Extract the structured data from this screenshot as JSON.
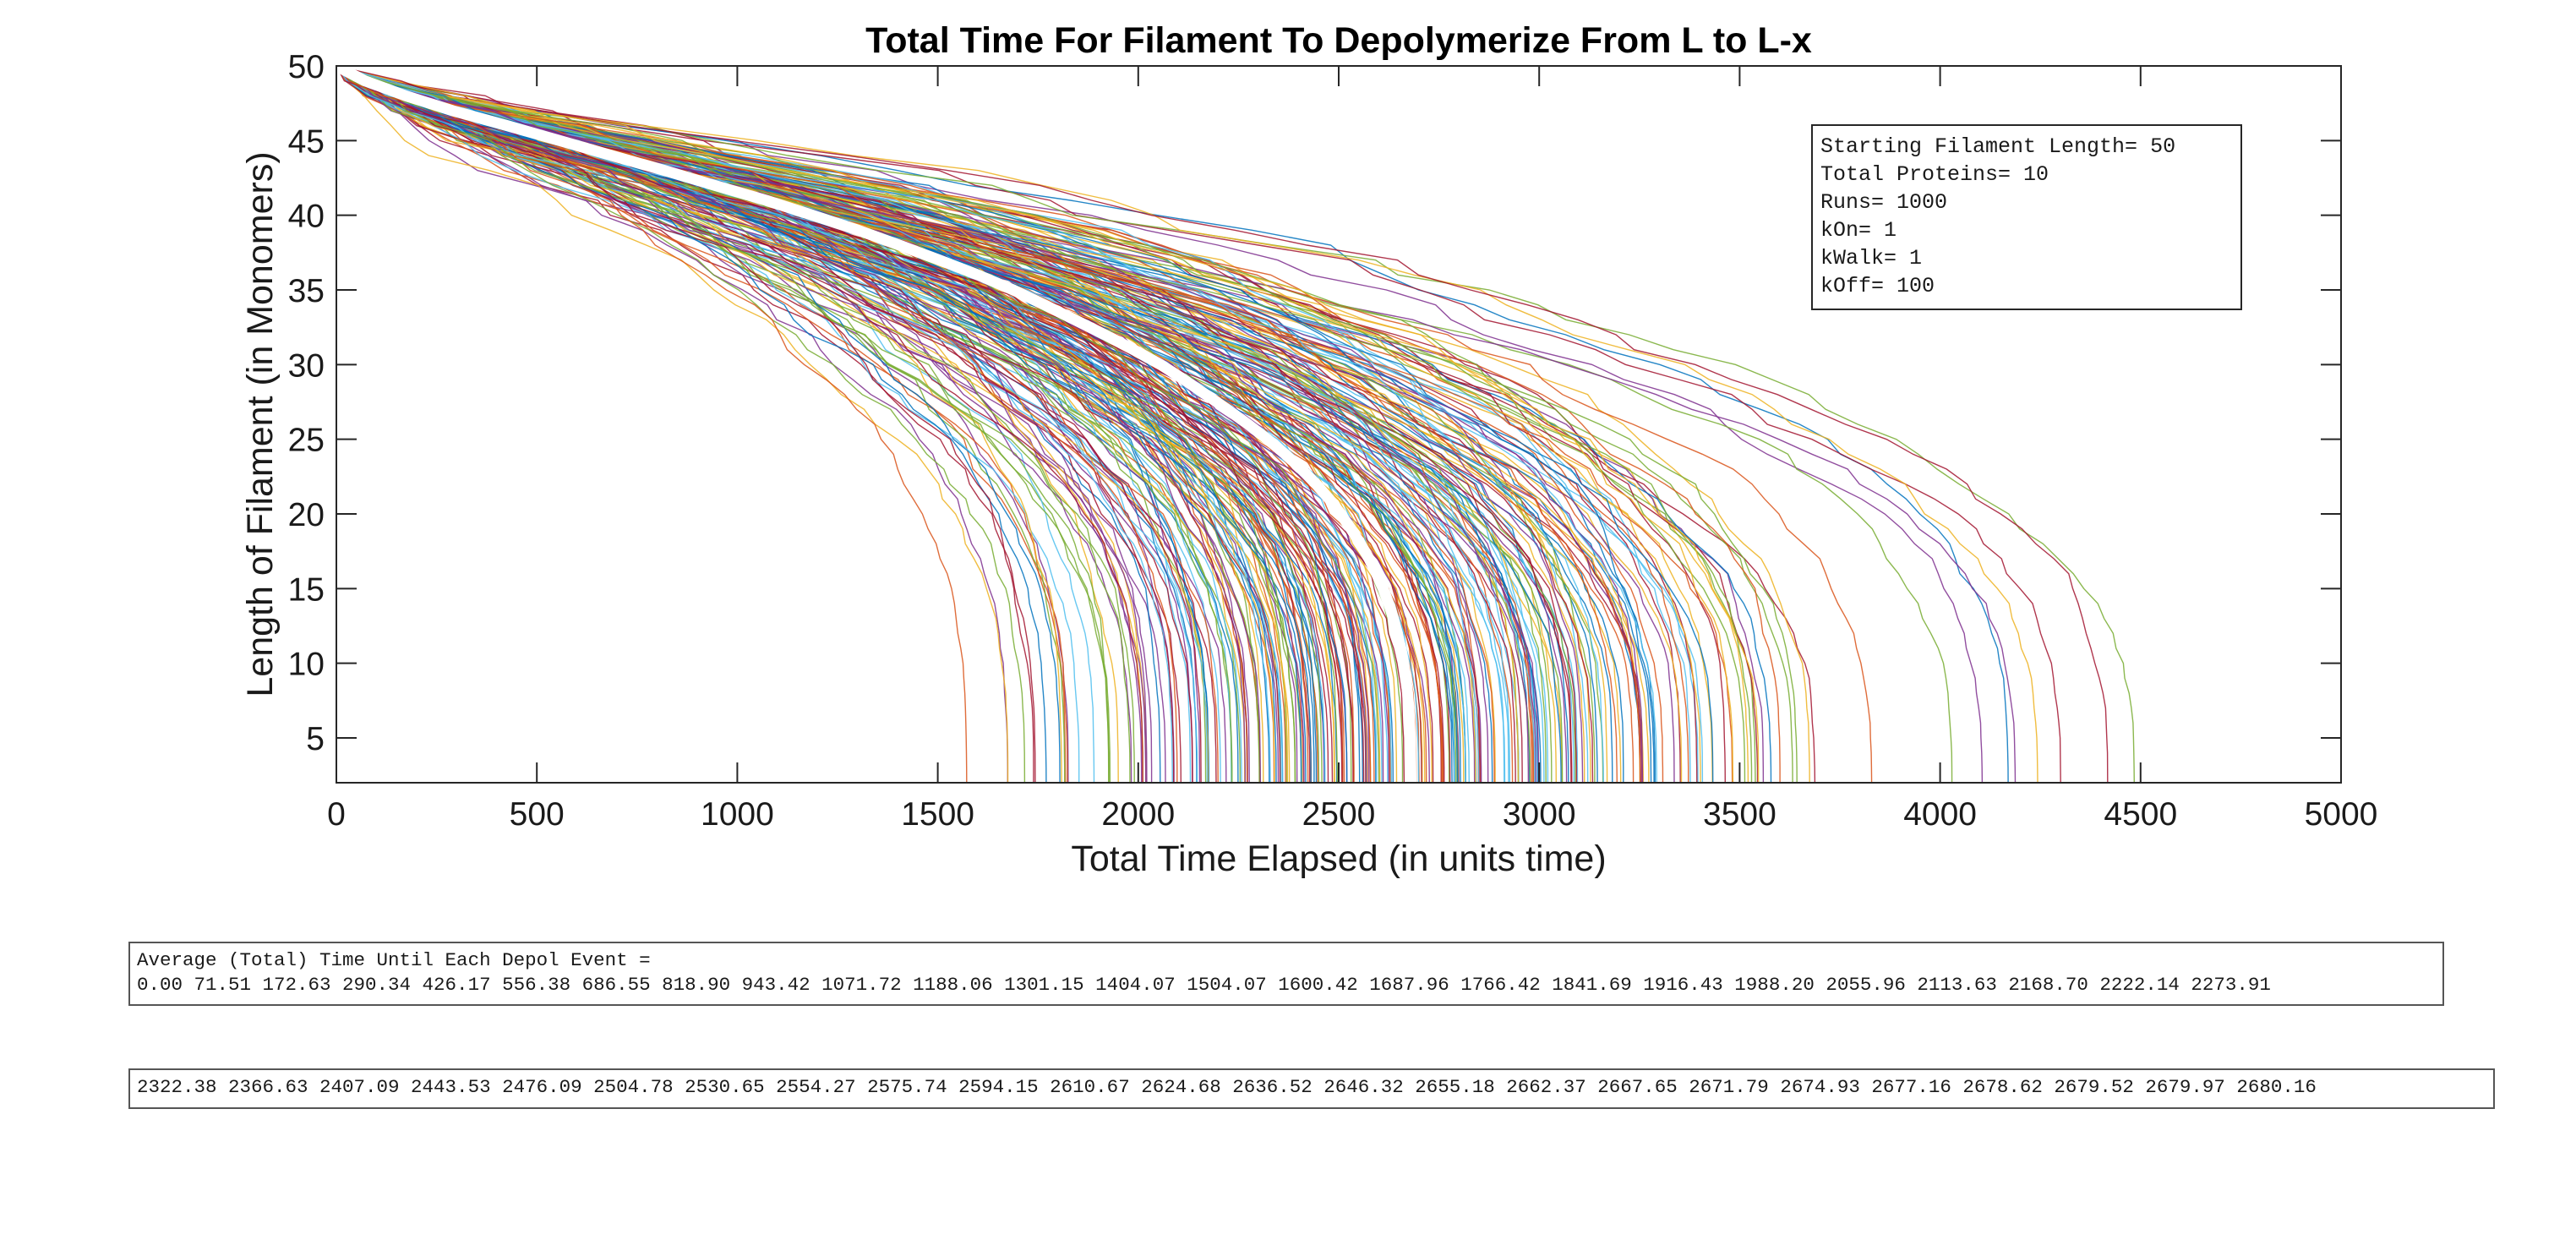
{
  "chart_data": {
    "type": "line",
    "title": "Total Time For Filament To Depolymerize From L to L-x",
    "xlabel": "Total Time Elapsed (in units time)",
    "ylabel": "Length of Filament (in Monomers)",
    "xlim": [
      0,
      5000
    ],
    "ylim": [
      2,
      50
    ],
    "xticks": [
      "0",
      "500",
      "1000",
      "1500",
      "2000",
      "2500",
      "3000",
      "3500",
      "4000",
      "4500",
      "5000"
    ],
    "yticks": [
      "5",
      "10",
      "15",
      "20",
      "25",
      "30",
      "35",
      "40",
      "45",
      "50"
    ],
    "grid": false,
    "runs_total": 1000,
    "series_colors": [
      "#0072BD",
      "#D95319",
      "#EDB120",
      "#7E2F8E",
      "#77AC30",
      "#4DBEEE",
      "#A2142F"
    ],
    "mean_series_color": "#ffffff",
    "mean_series": {
      "y": [
        50,
        49,
        48,
        47,
        46,
        45,
        44,
        43,
        42,
        41,
        40,
        39,
        38,
        37,
        36,
        35,
        34,
        33,
        32,
        31,
        30,
        29,
        28,
        27,
        26,
        25,
        24,
        23,
        22,
        21,
        20,
        19,
        18,
        17,
        16,
        15,
        14,
        13,
        12,
        11,
        10,
        9,
        8,
        7,
        6,
        5,
        4,
        3,
        2
      ],
      "x": [
        0.0,
        71.51,
        172.63,
        290.34,
        426.17,
        556.38,
        686.55,
        818.9,
        943.42,
        1071.72,
        1188.06,
        1301.15,
        1404.07,
        1504.07,
        1600.42,
        1687.96,
        1766.42,
        1841.69,
        1916.43,
        1988.2,
        2055.96,
        2113.63,
        2168.7,
        2222.14,
        2273.91,
        2322.38,
        2366.63,
        2407.09,
        2443.53,
        2476.09,
        2504.78,
        2530.65,
        2554.27,
        2575.74,
        2594.15,
        2610.67,
        2624.68,
        2636.52,
        2646.32,
        2655.18,
        2662.37,
        2667.65,
        2671.79,
        2674.93,
        2677.16,
        2678.62,
        2679.52,
        2679.97,
        2680.16
      ]
    },
    "legend": {
      "placement": "top-right",
      "lines": [
        "Starting Filament Length= 50",
        "Total Proteins= 10",
        "Runs= 1000",
        "kOn= 1",
        "kWalk= 1",
        "kOff= 100"
      ]
    }
  },
  "avg_text": {
    "line1": "Average (Total) Time Until Each Depol Event =",
    "line2": "0.00 71.51 172.63 290.34 426.17 556.38 686.55 818.90 943.42 1071.72 1188.06 1301.15 1404.07 1504.07 1600.42 1687.96 1766.42 1841.69 1916.43 1988.20 2055.96 2113.63 2168.70 2222.14 2273.91",
    "line3": "2322.38 2366.63 2407.09 2443.53 2476.09 2504.78 2530.65 2554.27 2575.74 2594.15 2610.67 2624.68 2636.52 2646.32 2655.18 2662.37 2667.65 2671.79 2674.93 2677.16 2678.62 2679.52 2679.97 2680.16"
  }
}
